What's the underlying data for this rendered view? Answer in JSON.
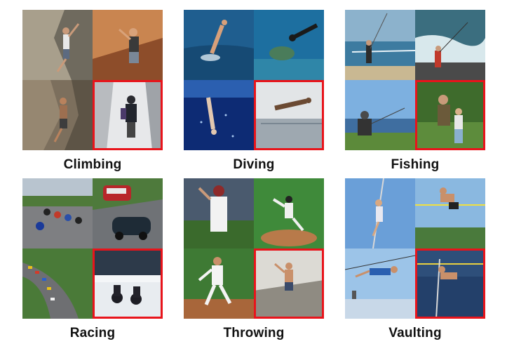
{
  "figure": {
    "highlight_color": "#e8141b",
    "categories": [
      {
        "id": "climbing",
        "label": "Climbing",
        "highlighted_tile": 4
      },
      {
        "id": "diving",
        "label": "Diving",
        "highlighted_tile": 4
      },
      {
        "id": "fishing",
        "label": "Fishing",
        "highlighted_tile": 4
      },
      {
        "id": "racing",
        "label": "Racing",
        "highlighted_tile": 4
      },
      {
        "id": "throwing",
        "label": "Throwing",
        "highlighted_tile": 4
      },
      {
        "id": "vaulting",
        "label": "Vaulting",
        "highlighted_tile": 4
      }
    ]
  }
}
